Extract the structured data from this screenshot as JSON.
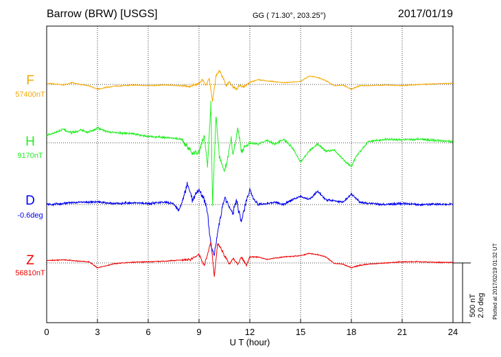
{
  "header": {
    "station": "Barrow (BRW)  [USGS]",
    "coords": "GG ( 71.30°, 203.25°)",
    "date": "2017/01/19"
  },
  "scale": {
    "nt": "500 nT",
    "deg": "2.0 deg"
  },
  "plotted_at": "Plotted at 2017/02/19 01:32 UT",
  "chart_data": {
    "type": "line",
    "title": "Barrow (BRW)  [USGS]",
    "xlabel": "U T (hour)",
    "xlim": [
      0,
      24
    ],
    "xticks": [
      0,
      3,
      6,
      9,
      12,
      15,
      18,
      21,
      24
    ],
    "xtick_labels": [
      "0",
      "3",
      "6",
      "9",
      "12",
      "15",
      "18",
      "21",
      "24"
    ],
    "grid": "dotted",
    "scale_bar": "500 nT / 2.0 deg",
    "series": [
      {
        "name": "F",
        "baseline_label": "57400nT",
        "color": "#f5a800",
        "points": [
          [
            0,
            10
          ],
          [
            0.5,
            5
          ],
          [
            1,
            -5
          ],
          [
            1.5,
            15
          ],
          [
            2,
            0
          ],
          [
            2.5,
            -10
          ],
          [
            3,
            -40
          ],
          [
            3.5,
            -25
          ],
          [
            4,
            -15
          ],
          [
            5,
            -5
          ],
          [
            6,
            -10
          ],
          [
            7,
            -5
          ],
          [
            8,
            -10
          ],
          [
            8.5,
            -15
          ],
          [
            9,
            10
          ],
          [
            9.2,
            40
          ],
          [
            9.4,
            -10
          ],
          [
            9.6,
            50
          ],
          [
            9.8,
            -140
          ],
          [
            10,
            70
          ],
          [
            10.2,
            120
          ],
          [
            10.4,
            60
          ],
          [
            10.6,
            -10
          ],
          [
            10.8,
            20
          ],
          [
            11,
            -20
          ],
          [
            11.2,
            -40
          ],
          [
            11.4,
            -10
          ],
          [
            11.6,
            -20
          ],
          [
            11.8,
            -5
          ],
          [
            12,
            20
          ],
          [
            12.5,
            40
          ],
          [
            13,
            30
          ],
          [
            14,
            15
          ],
          [
            15,
            25
          ],
          [
            15.5,
            70
          ],
          [
            16,
            60
          ],
          [
            16.5,
            30
          ],
          [
            17,
            -10
          ],
          [
            17.5,
            -5
          ],
          [
            18,
            -40
          ],
          [
            18.5,
            -10
          ],
          [
            19,
            -10
          ],
          [
            20,
            -5
          ],
          [
            21,
            -10
          ],
          [
            22,
            0
          ],
          [
            23,
            5
          ],
          [
            24,
            10
          ]
        ]
      },
      {
        "name": "H",
        "baseline_label": "9170nT",
        "color": "#22ee22",
        "points": [
          [
            0,
            60
          ],
          [
            0.5,
            90
          ],
          [
            1,
            110
          ],
          [
            1.5,
            85
          ],
          [
            2,
            105
          ],
          [
            2.5,
            90
          ],
          [
            3,
            125
          ],
          [
            3.5,
            95
          ],
          [
            4,
            85
          ],
          [
            5,
            75
          ],
          [
            6,
            55
          ],
          [
            7,
            45
          ],
          [
            8,
            30
          ],
          [
            8.3,
            -30
          ],
          [
            8.6,
            -90
          ],
          [
            9,
            -80
          ],
          [
            9.3,
            60
          ],
          [
            9.5,
            -200
          ],
          [
            9.7,
            330
          ],
          [
            9.8,
            -520
          ],
          [
            10,
            230
          ],
          [
            10.2,
            -100
          ],
          [
            10.5,
            -250
          ],
          [
            10.7,
            -120
          ],
          [
            10.9,
            40
          ],
          [
            11,
            -100
          ],
          [
            11.3,
            120
          ],
          [
            11.5,
            -70
          ],
          [
            11.7,
            -40
          ],
          [
            12,
            0
          ],
          [
            12.5,
            -10
          ],
          [
            13,
            20
          ],
          [
            13.5,
            -10
          ],
          [
            14,
            30
          ],
          [
            14.5,
            -40
          ],
          [
            15,
            -160
          ],
          [
            15.5,
            -70
          ],
          [
            16,
            -10
          ],
          [
            16.5,
            -70
          ],
          [
            17,
            -60
          ],
          [
            17.5,
            -140
          ],
          [
            18,
            -200
          ],
          [
            18.3,
            -110
          ],
          [
            19,
            10
          ],
          [
            20,
            30
          ],
          [
            21,
            25
          ],
          [
            22,
            30
          ],
          [
            23,
            20
          ],
          [
            24,
            10
          ]
        ]
      },
      {
        "name": "D",
        "baseline_label": "-0.6deg",
        "color": "#0000ee",
        "points": [
          [
            0,
            0
          ],
          [
            1,
            10
          ],
          [
            2,
            20
          ],
          [
            3,
            20
          ],
          [
            4,
            10
          ],
          [
            5,
            15
          ],
          [
            6,
            10
          ],
          [
            7,
            20
          ],
          [
            7.5,
            5
          ],
          [
            7.8,
            -50
          ],
          [
            8,
            20
          ],
          [
            8.3,
            180
          ],
          [
            8.6,
            40
          ],
          [
            9,
            130
          ],
          [
            9.3,
            40
          ],
          [
            9.5,
            -60
          ],
          [
            9.7,
            -350
          ],
          [
            9.9,
            -420
          ],
          [
            10.1,
            -230
          ],
          [
            10.3,
            -80
          ],
          [
            10.5,
            60
          ],
          [
            10.8,
            -20
          ],
          [
            11,
            -80
          ],
          [
            11.2,
            40
          ],
          [
            11.5,
            -140
          ],
          [
            11.7,
            -20
          ],
          [
            12,
            130
          ],
          [
            12.2,
            50
          ],
          [
            12.5,
            0
          ],
          [
            13,
            10
          ],
          [
            13.5,
            20
          ],
          [
            14,
            0
          ],
          [
            14.5,
            40
          ],
          [
            15,
            70
          ],
          [
            15.5,
            40
          ],
          [
            16,
            110
          ],
          [
            16.5,
            40
          ],
          [
            17,
            30
          ],
          [
            17.5,
            20
          ],
          [
            18,
            90
          ],
          [
            18.5,
            20
          ],
          [
            19,
            10
          ],
          [
            20,
            0
          ],
          [
            21,
            10
          ],
          [
            22,
            0
          ],
          [
            23,
            5
          ],
          [
            24,
            0
          ]
        ]
      },
      {
        "name": "Z",
        "baseline_label": "56810nT",
        "color": "#ee0000",
        "points": [
          [
            0,
            20
          ],
          [
            1,
            25
          ],
          [
            2,
            15
          ],
          [
            2.5,
            10
          ],
          [
            3,
            -40
          ],
          [
            3.5,
            -25
          ],
          [
            4,
            -5
          ],
          [
            5,
            5
          ],
          [
            6,
            10
          ],
          [
            7,
            15
          ],
          [
            8,
            25
          ],
          [
            8.5,
            30
          ],
          [
            9,
            70
          ],
          [
            9.3,
            -20
          ],
          [
            9.5,
            70
          ],
          [
            9.7,
            180
          ],
          [
            9.9,
            -110
          ],
          [
            10.1,
            160
          ],
          [
            10.3,
            120
          ],
          [
            10.5,
            60
          ],
          [
            10.8,
            -10
          ],
          [
            11,
            40
          ],
          [
            11.3,
            -10
          ],
          [
            11.5,
            50
          ],
          [
            11.8,
            -20
          ],
          [
            12,
            50
          ],
          [
            12.5,
            50
          ],
          [
            13,
            30
          ],
          [
            14,
            50
          ],
          [
            15,
            60
          ],
          [
            15.5,
            80
          ],
          [
            16,
            70
          ],
          [
            16.5,
            50
          ],
          [
            17,
            -5
          ],
          [
            17.5,
            -10
          ],
          [
            18,
            -40
          ],
          [
            18.5,
            -20
          ],
          [
            19,
            -10
          ],
          [
            20,
            0
          ],
          [
            21,
            10
          ],
          [
            22,
            10
          ],
          [
            23,
            5
          ],
          [
            24,
            5
          ]
        ]
      }
    ]
  }
}
